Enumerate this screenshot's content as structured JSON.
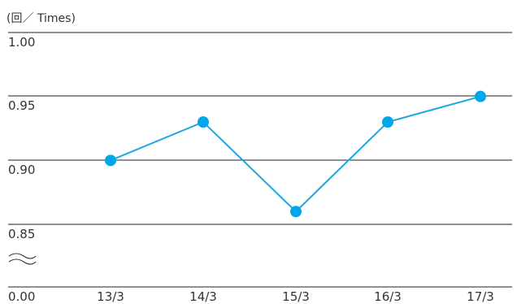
{
  "chart_data": {
    "type": "line",
    "unit_label": "(回／ Times)",
    "x": [
      "13/3",
      "14/3",
      "15/3",
      "16/3",
      "17/3"
    ],
    "series": [
      {
        "values": [
          0.9,
          0.93,
          0.86,
          0.93,
          0.95
        ]
      }
    ],
    "y_ticks": [
      "1.00",
      "0.95",
      "0.90",
      "0.85",
      "0.00"
    ],
    "ylim": [
      0.85,
      1.0
    ],
    "axis_break": true,
    "grid": true,
    "colors": {
      "line": "#1ba7e1",
      "marker": "#00a6ea",
      "grid": "#222222",
      "text": "#333333"
    }
  }
}
